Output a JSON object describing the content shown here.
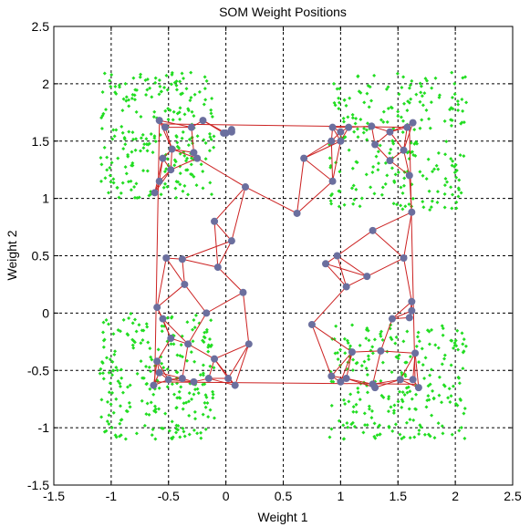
{
  "chart_data": {
    "type": "scatter",
    "title": "SOM Weight Positions",
    "xlabel": "Weight 1",
    "ylabel": "Weight 2",
    "xlim": [
      -1.5,
      2.5
    ],
    "ylim": [
      -1.5,
      2.5
    ],
    "xticks": [
      "-1.5",
      "-1",
      "-0.5",
      "0",
      "0.5",
      "1",
      "1.5",
      "2",
      "2.5"
    ],
    "yticks": [
      "2.5",
      "2",
      "1.5",
      "1",
      "0.5",
      "0",
      "-0.5",
      "-1",
      "-1.5"
    ],
    "grid": true,
    "colors": {
      "data_points": "#22dd22",
      "neurons": "#6b6f9e",
      "links": "#cc2222"
    },
    "data_clusters": [
      {
        "xmin": -1.1,
        "xmax": -0.1,
        "ymin": 1.0,
        "ymax": 2.1
      },
      {
        "xmin": 0.9,
        "xmax": 2.1,
        "ymin": 0.9,
        "ymax": 2.1
      },
      {
        "xmin": -1.1,
        "xmax": -0.1,
        "ymin": -1.1,
        "ymax": 0.0
      },
      {
        "xmin": 0.9,
        "xmax": 2.1,
        "ymin": -1.1,
        "ymax": -0.1
      }
    ],
    "neurons": [
      [
        -0.58,
        1.68
      ],
      [
        -0.53,
        1.62
      ],
      [
        -0.3,
        1.62
      ],
      [
        -0.2,
        1.68
      ],
      [
        -0.02,
        1.57
      ],
      [
        0.05,
        1.6
      ],
      [
        0.93,
        1.62
      ],
      [
        1.0,
        1.58
      ],
      [
        1.07,
        1.62
      ],
      [
        1.27,
        1.63
      ],
      [
        1.43,
        1.58
      ],
      [
        1.58,
        1.62
      ],
      [
        1.63,
        1.66
      ],
      [
        -0.55,
        1.35
      ],
      [
        -0.47,
        1.43
      ],
      [
        -0.48,
        1.25
      ],
      [
        -0.58,
        1.15
      ],
      [
        -0.62,
        1.05
      ],
      [
        -0.28,
        1.4
      ],
      [
        -0.25,
        1.35
      ],
      [
        0.0,
        1.57
      ],
      [
        0.05,
        1.58
      ],
      [
        -0.1,
        0.8
      ],
      [
        0.17,
        1.1
      ],
      [
        0.05,
        0.63
      ],
      [
        0.68,
        1.35
      ],
      [
        0.62,
        0.87
      ],
      [
        0.92,
        1.5
      ],
      [
        0.93,
        1.15
      ],
      [
        1.0,
        1.5
      ],
      [
        1.3,
        1.47
      ],
      [
        1.43,
        1.33
      ],
      [
        1.55,
        1.42
      ],
      [
        1.6,
        1.2
      ],
      [
        1.62,
        0.88
      ],
      [
        1.55,
        0.48
      ],
      [
        1.28,
        0.72
      ],
      [
        0.97,
        0.5
      ],
      [
        0.87,
        0.43
      ],
      [
        -0.52,
        0.48
      ],
      [
        -0.38,
        0.47
      ],
      [
        -0.36,
        0.25
      ],
      [
        -0.07,
        0.4
      ],
      [
        0.15,
        0.18
      ],
      [
        -0.17,
        -0.0
      ],
      [
        1.05,
        0.23
      ],
      [
        1.23,
        0.32
      ],
      [
        0.75,
        -0.1
      ],
      [
        1.45,
        -0.05
      ],
      [
        -0.6,
        0.05
      ],
      [
        -0.55,
        -0.05
      ],
      [
        -0.48,
        -0.22
      ],
      [
        -0.6,
        -0.42
      ],
      [
        0.2,
        -0.27
      ],
      [
        -0.33,
        -0.27
      ],
      [
        -0.1,
        -0.4
      ],
      [
        1.6,
        -0.04
      ],
      [
        1.62,
        0.02
      ],
      [
        1.62,
        0.1
      ],
      [
        1.65,
        -0.35
      ],
      [
        1.35,
        -0.33
      ],
      [
        1.1,
        -0.34
      ],
      [
        1.52,
        -0.58
      ],
      [
        1.63,
        -0.58
      ],
      [
        1.68,
        -0.65
      ],
      [
        -0.63,
        -0.63
      ],
      [
        -0.58,
        -0.52
      ],
      [
        -0.5,
        -0.58
      ],
      [
        -0.38,
        -0.57
      ],
      [
        -0.28,
        -0.6
      ],
      [
        -0.15,
        -0.57
      ],
      [
        0.02,
        -0.57
      ],
      [
        0.08,
        -0.63
      ],
      [
        0.92,
        -0.55
      ],
      [
        1.0,
        -0.6
      ],
      [
        1.05,
        -0.57
      ],
      [
        1.28,
        -0.62
      ],
      [
        1.3,
        -0.65
      ]
    ]
  }
}
